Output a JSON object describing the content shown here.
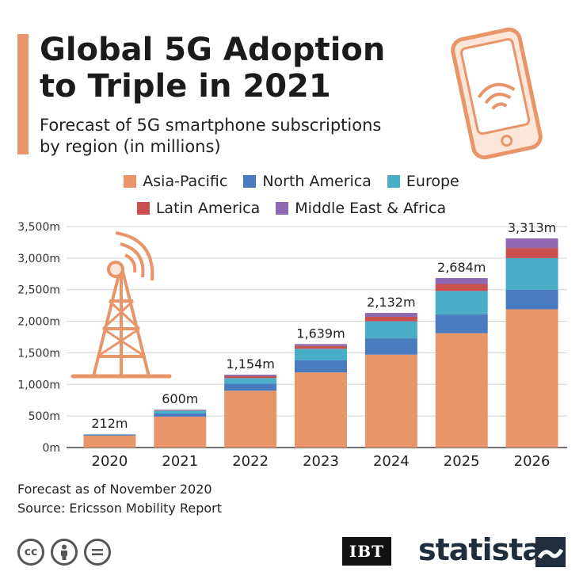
{
  "header": {
    "title_line1": "Global 5G Adoption",
    "title_line2": "to Triple in 2021",
    "subtitle_line1": "Forecast of 5G smartphone subscriptions",
    "subtitle_line2": "by region (in millions)"
  },
  "legend": {
    "row1": [
      {
        "label": "Asia-Pacific",
        "color": "#e8956a"
      },
      {
        "label": "North America",
        "color": "#4b7bbf"
      },
      {
        "label": "Europe",
        "color": "#4aaec8"
      }
    ],
    "row2": [
      {
        "label": "Latin America",
        "color": "#c9504f"
      },
      {
        "label": "Middle East & Africa",
        "color": "#8e68b0"
      }
    ]
  },
  "chart_data": {
    "type": "bar",
    "stacked": true,
    "categories": [
      "2020",
      "2021",
      "2022",
      "2023",
      "2024",
      "2025",
      "2026"
    ],
    "series": [
      {
        "name": "Asia-Pacific",
        "color": "#e8956a",
        "values": [
          190,
          490,
          900,
          1190,
          1470,
          1810,
          2190
        ]
      },
      {
        "name": "North America",
        "color": "#4b7bbf",
        "values": [
          12,
          50,
          110,
          190,
          260,
          300,
          310
        ]
      },
      {
        "name": "Europe",
        "color": "#4aaec8",
        "values": [
          6,
          45,
          90,
          185,
          270,
          370,
          500
        ]
      },
      {
        "name": "Latin America",
        "color": "#c9504f",
        "values": [
          2,
          8,
          30,
          44,
          70,
          110,
          160
        ]
      },
      {
        "name": "Middle East & Africa",
        "color": "#8e68b0",
        "values": [
          2,
          7,
          24,
          30,
          62,
          94,
          153
        ]
      }
    ],
    "totals": [
      212,
      600,
      1154,
      1639,
      2132,
      2684,
      3313
    ],
    "total_labels": [
      "212m",
      "600m",
      "1,154m",
      "1,639m",
      "2,132m",
      "2,684m",
      "3,313m"
    ],
    "y_ticks": [
      0,
      500,
      1000,
      1500,
      2000,
      2500,
      3000,
      3500
    ],
    "y_tick_labels": [
      "0m",
      "500m",
      "1,000m",
      "1,500m",
      "2,000m",
      "2,500m",
      "3,000m",
      "3,500m"
    ],
    "ylim": [
      0,
      3500
    ],
    "grid": true,
    "legend_position": "top"
  },
  "footer": {
    "note": "Forecast as of November 2020",
    "source": "Source: Ericsson Mobility Report",
    "cc_icons": [
      "cc-icon",
      "attribution-icon",
      "no-derivatives-icon"
    ],
    "ibt_logo": "IBT",
    "statista_logo": "statista"
  }
}
